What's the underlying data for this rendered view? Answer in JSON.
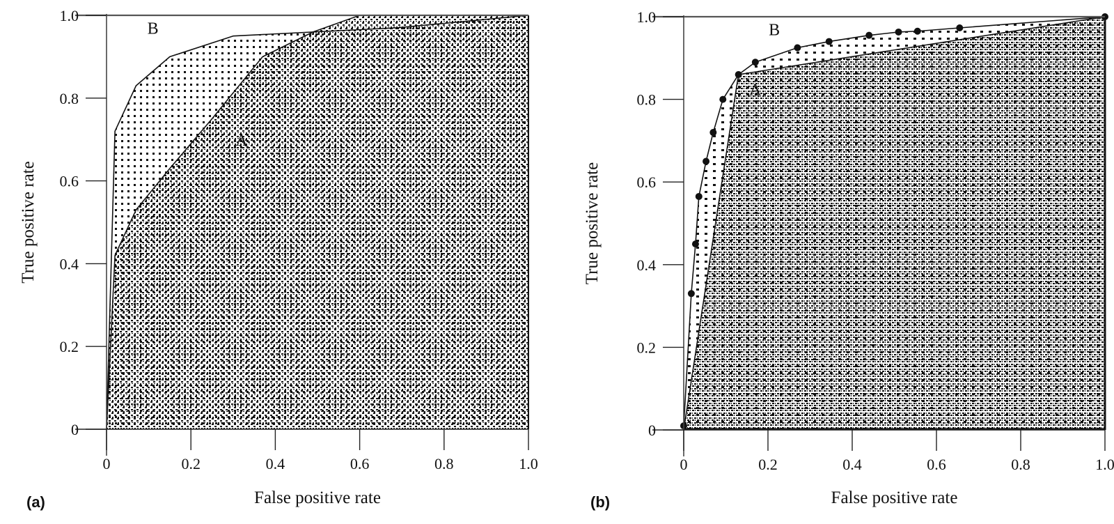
{
  "figure": {
    "panels": [
      {
        "id": "a",
        "tag": "(a)",
        "xlabel": "False positive rate",
        "ylabel": "True positive rate",
        "xticks": [
          "0",
          "0.2",
          "0.4",
          "0.6",
          "0.8",
          "1.0"
        ],
        "yticks": [
          "0",
          "0.2",
          "0.4",
          "0.6",
          "0.8",
          "1.0"
        ],
        "curve_labels": [
          {
            "text": "B",
            "x": 0.11,
            "y": 0.955
          },
          {
            "text": "A",
            "x": 0.32,
            "y": 0.685
          }
        ]
      },
      {
        "id": "b",
        "tag": "(b)",
        "xlabel": "False positive rate",
        "ylabel": "True positive rate",
        "xticks": [
          "0",
          "0.2",
          "0.4",
          "0.6",
          "0.8",
          "1.0"
        ],
        "yticks": [
          "0",
          "0.2",
          "0.4",
          "0.6",
          "0.8",
          "1.0"
        ],
        "curve_labels": [
          {
            "text": "B",
            "x": 0.215,
            "y": 0.955
          },
          {
            "text": "A",
            "x": 0.17,
            "y": 0.81
          }
        ]
      }
    ]
  },
  "chart_data": [
    {
      "type": "area",
      "title": "(a)",
      "xlabel": "False positive rate",
      "ylabel": "True positive rate",
      "xlim": [
        0,
        1.0
      ],
      "ylim": [
        0,
        1.0
      ],
      "grid": false,
      "legend": "none (curves labeled inline: A, B)",
      "fill": "area under each ROC curve is shaded with dot/hatch patterns (AUC illustration)",
      "series": [
        {
          "name": "A",
          "x": [
            0,
            0.02,
            0.07,
            0.15,
            0.25,
            0.37,
            0.49,
            0.6,
            1.0
          ],
          "y": [
            0,
            0.42,
            0.53,
            0.63,
            0.75,
            0.9,
            0.96,
            1.0,
            1.0
          ]
        },
        {
          "name": "B",
          "x": [
            0,
            0.02,
            0.07,
            0.15,
            0.3,
            0.69,
            1.0
          ],
          "y": [
            0,
            0.72,
            0.83,
            0.9,
            0.95,
            0.97,
            1.0
          ]
        }
      ]
    },
    {
      "type": "area",
      "title": "(b)",
      "xlabel": "False positive rate",
      "ylabel": "True positive rate",
      "xlim": [
        0,
        1.0
      ],
      "ylim": [
        0,
        1.0
      ],
      "grid": false,
      "legend": "none (curves labeled inline: A, B)",
      "fill": "area under each ROC curve is shaded with dot patterns; B drawn with filled circle markers",
      "series": [
        {
          "name": "A",
          "x": [
            0,
            0.13,
            1.0
          ],
          "y": [
            0,
            0.86,
            1.0
          ]
        },
        {
          "name": "B",
          "markers": "filled-circle",
          "x": [
            0,
            0.018,
            0.028,
            0.036,
            0.053,
            0.07,
            0.093,
            0.13,
            0.17,
            0.27,
            0.345,
            0.44,
            0.51,
            0.555,
            0.655,
            1.0
          ],
          "y": [
            0.01,
            0.33,
            0.45,
            0.565,
            0.65,
            0.72,
            0.8,
            0.86,
            0.89,
            0.925,
            0.94,
            0.955,
            0.963,
            0.965,
            0.973,
            1.0
          ]
        }
      ]
    }
  ]
}
